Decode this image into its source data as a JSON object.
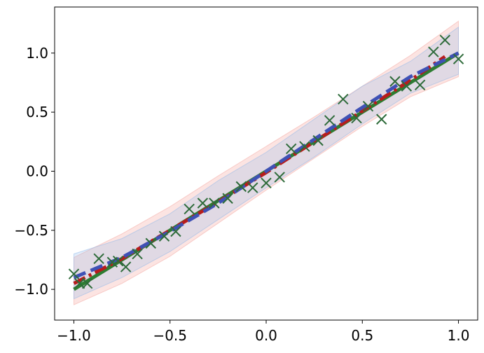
{
  "chart_data": {
    "type": "line",
    "title": "",
    "xlabel": "",
    "ylabel": "",
    "xlim": [
      -1.1,
      1.1
    ],
    "ylim": [
      -1.26,
      1.39
    ],
    "grid": false,
    "legend": "none",
    "x_ticks": [
      {
        "value": -1.0,
        "label": "−1.0"
      },
      {
        "value": -0.5,
        "label": "−0.5"
      },
      {
        "value": 0.0,
        "label": "0.0"
      },
      {
        "value": 0.5,
        "label": "0.5"
      },
      {
        "value": 1.0,
        "label": "1.0"
      }
    ],
    "y_ticks": [
      {
        "value": -1.0,
        "label": "−1.0"
      },
      {
        "value": -0.5,
        "label": "−0.5"
      },
      {
        "value": 0.0,
        "label": "0.0"
      },
      {
        "value": 0.5,
        "label": "0.5"
      },
      {
        "value": 1.0,
        "label": "1.0"
      }
    ],
    "bands": [
      {
        "color": "#f4a6a0",
        "opacity": 0.3,
        "x": [
          -1.0,
          -0.75,
          -0.5,
          -0.25,
          0.0,
          0.25,
          0.5,
          0.75,
          1.0
        ],
        "lower": [
          -1.13,
          -0.95,
          -0.72,
          -0.44,
          -0.16,
          0.11,
          0.38,
          0.63,
          0.8
        ],
        "upper": [
          -0.73,
          -0.53,
          -0.3,
          -0.04,
          0.21,
          0.46,
          0.72,
          0.98,
          1.27
        ]
      },
      {
        "color": "#8db7ea",
        "opacity": 0.25,
        "x": [
          -1.0,
          -0.75,
          -0.5,
          -0.25,
          0.0,
          0.25,
          0.5,
          0.75,
          1.0
        ],
        "lower": [
          -1.08,
          -0.9,
          -0.68,
          -0.41,
          -0.14,
          0.12,
          0.4,
          0.66,
          0.82
        ],
        "upper": [
          -0.7,
          -0.57,
          -0.36,
          -0.08,
          0.16,
          0.44,
          0.72,
          0.93,
          1.22
        ]
      }
    ],
    "series": [
      {
        "color": "#2e7d32",
        "style": "solid",
        "width": 5,
        "x": [
          -1.0,
          1.0
        ],
        "y": [
          -1.0,
          1.0
        ]
      },
      {
        "color": "#b71c1c",
        "style": "dashdot",
        "width": 5,
        "x": [
          -1.0,
          -0.75,
          -0.5,
          -0.25,
          0.0,
          0.25,
          0.5,
          0.75,
          0.93
        ],
        "y": [
          -0.95,
          -0.74,
          -0.5,
          -0.26,
          -0.01,
          0.25,
          0.51,
          0.77,
          0.97
        ]
      },
      {
        "color": "#3f51b5",
        "style": "dashed",
        "width": 5,
        "x": [
          -1.0,
          -0.75,
          -0.5,
          -0.25,
          0.0,
          0.25,
          0.5,
          0.75,
          1.0
        ],
        "y": [
          -0.9,
          -0.73,
          -0.51,
          -0.27,
          0.0,
          0.27,
          0.54,
          0.8,
          1.0
        ]
      }
    ],
    "scatter": {
      "color": "#2e6b3a",
      "marker": "x",
      "points": [
        [
          -1.0,
          -0.87
        ],
        [
          -0.97,
          -0.95
        ],
        [
          -0.93,
          -0.95
        ],
        [
          -0.87,
          -0.74
        ],
        [
          -0.8,
          -0.77
        ],
        [
          -0.77,
          -0.76
        ],
        [
          -0.73,
          -0.81
        ],
        [
          -0.67,
          -0.7
        ],
        [
          -0.6,
          -0.61
        ],
        [
          -0.53,
          -0.55
        ],
        [
          -0.47,
          -0.51
        ],
        [
          -0.4,
          -0.32
        ],
        [
          -0.33,
          -0.27
        ],
        [
          -0.27,
          -0.27
        ],
        [
          -0.2,
          -0.23
        ],
        [
          -0.13,
          -0.13
        ],
        [
          -0.07,
          -0.14
        ],
        [
          0.0,
          -0.1
        ],
        [
          0.07,
          -0.05
        ],
        [
          0.13,
          0.19
        ],
        [
          0.2,
          0.21
        ],
        [
          0.27,
          0.26
        ],
        [
          0.33,
          0.43
        ],
        [
          0.4,
          0.61
        ],
        [
          0.47,
          0.45
        ],
        [
          0.53,
          0.55
        ],
        [
          0.6,
          0.44
        ],
        [
          0.67,
          0.76
        ],
        [
          0.73,
          0.72
        ],
        [
          0.8,
          0.73
        ],
        [
          0.87,
          1.01
        ],
        [
          0.93,
          1.11
        ],
        [
          1.0,
          0.95
        ]
      ]
    }
  }
}
